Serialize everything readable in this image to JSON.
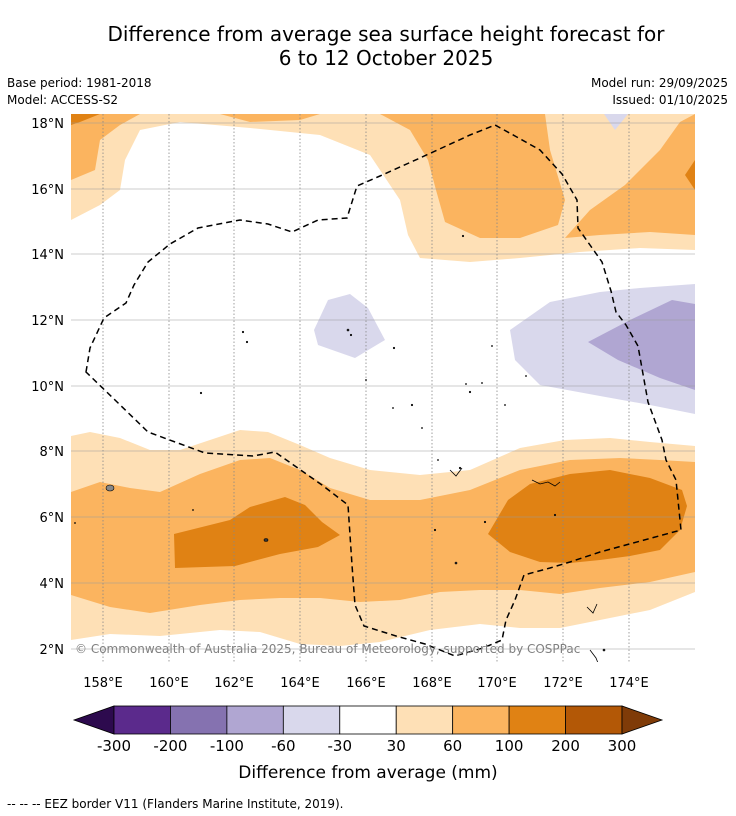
{
  "title": {
    "line1": "Difference from average sea surface height forecast for",
    "line2": "6 to 12 October 2025"
  },
  "meta": {
    "base_period": "Base period: 1981-2018",
    "model": "Model: ACCESS-S2",
    "model_run": "Model run: 29/09/2025",
    "issued": "Issued: 01/10/2025"
  },
  "map": {
    "lat_labels": [
      "18°N",
      "16°N",
      "14°N",
      "12°N",
      "10°N",
      "8°N",
      "6°N",
      "4°N",
      "2°N"
    ],
    "lon_labels": [
      "158°E",
      "160°E",
      "162°E",
      "164°E",
      "166°E",
      "168°E",
      "170°E",
      "172°E",
      "174°E"
    ],
    "copyright": "© Commonwealth of Australia 2025, Bureau of Meteorology, supported by COSPPac"
  },
  "colorbar": {
    "ticks": [
      "-300",
      "-200",
      "-100",
      "-60",
      "-30",
      "30",
      "60",
      "100",
      "200",
      "300"
    ],
    "colors": [
      "#5b2a8c",
      "#8572b0",
      "#b0a6d2",
      "#d9d8ec",
      "#ffffff",
      "#fee0b6",
      "#fbb45f",
      "#e08214",
      "#b35806"
    ],
    "under_color": "#2d0a4e",
    "over_color": "#7f3b08",
    "label": "Difference from average (mm)"
  },
  "legend": {
    "text": "--  --  -- EEZ border V11 (Flanders Marine Institute, 2019)."
  }
}
